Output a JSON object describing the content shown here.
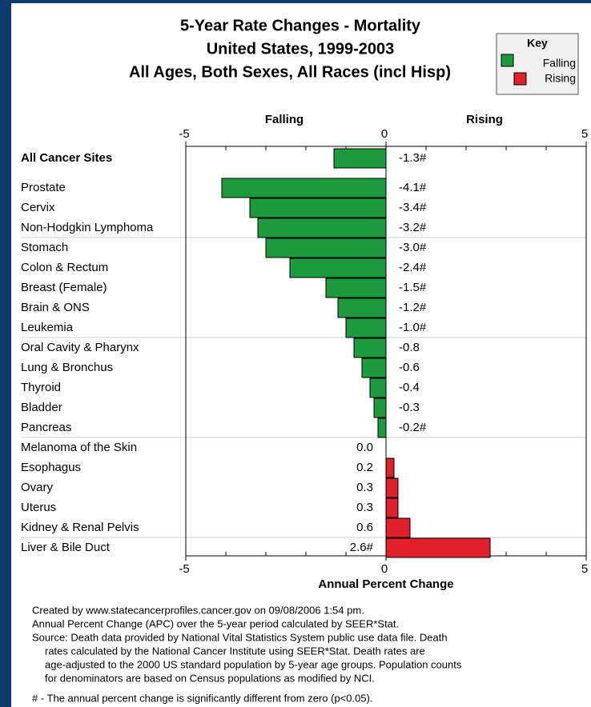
{
  "chart_data": {
    "type": "hbar",
    "title": [
      "5-Year Rate Changes - Mortality",
      "United States, 1999-2003",
      "All Ages, Both Sexes, All Races (incl Hisp)"
    ],
    "legend": {
      "title": "Key",
      "items": [
        {
          "name": "Falling",
          "color": "#1e9a3e"
        },
        {
          "name": "Rising",
          "color": "#e0202a"
        }
      ]
    },
    "direction_labels": [
      "Falling",
      "Rising"
    ],
    "xlabel": "Annual Percent Change",
    "xlim": [
      -5,
      5
    ],
    "xticks": [
      -5,
      0,
      5
    ],
    "minor_xticks": [
      -4,
      -3,
      -2,
      -1,
      1,
      2,
      3,
      4
    ],
    "categories": [
      "All Cancer Sites",
      "Prostate",
      "Cervix",
      "Non-Hodgkin Lymphoma",
      "Stomach",
      "Colon & Rectum",
      "Breast (Female)",
      "Brain & ONS",
      "Leukemia",
      "Oral Cavity & Pharynx",
      "Lung & Bronchus",
      "Thyroid",
      "Bladder",
      "Pancreas",
      "Melanoma of the Skin",
      "Esophagus",
      "Ovary",
      "Uterus",
      "Kidney & Renal Pelvis",
      "Liver & Bile Duct"
    ],
    "values": [
      -1.3,
      -4.1,
      -3.4,
      -3.2,
      -3.0,
      -2.4,
      -1.5,
      -1.2,
      -1.0,
      -0.8,
      -0.6,
      -0.4,
      -0.3,
      -0.2,
      0.0,
      0.2,
      0.3,
      0.3,
      0.6,
      2.6
    ],
    "value_labels": [
      "-1.3#",
      "-4.1#",
      "-3.4#",
      "-3.2#",
      "-3.0#",
      "-2.4#",
      "-1.5#",
      "-1.2#",
      "-1.0#",
      "-0.8",
      "-0.6",
      "-0.4",
      "-0.3",
      "-0.2#",
      "0.0",
      "0.2",
      "0.3",
      "0.3",
      "0.6",
      "2.6#"
    ],
    "notes": [
      "Created by www.statecancerprofiles.cancer.gov on 09/08/2006 1:54 pm.",
      "Annual Percent Change (APC) over the 5-year period calculated by  SEER*Stat.",
      "Source: Death data provided by National Vital Statistics System public use data file.  Death",
      "rates calculated by the National Cancer Institute using SEER*Stat.  Death rates are",
      "age-adjusted to the 2000 US standard population by 5-year age groups.  Population counts",
      "for denominators are based on Census populations as modified by NCI.",
      "# - The annual percent change is significantly different from zero (p<0.05)."
    ]
  }
}
